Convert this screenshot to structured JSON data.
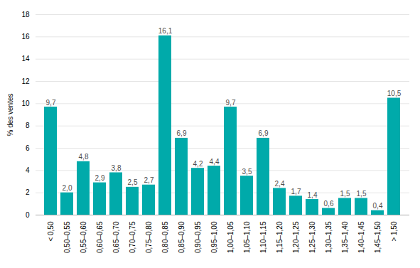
{
  "chart_data": {
    "type": "bar",
    "ylabel": "% des ventes",
    "categories": [
      "< 0,50",
      "0,50–0,55",
      "0,55–0,60",
      "0,60–0,65",
      "0,65–0,70",
      "0,70–0,75",
      "0,75–0,80",
      "0,80–0,85",
      "0,85–0,90",
      "0,90–0,95",
      "0,95–1,00",
      "1,00–1,05",
      "1,05–1,10",
      "1,10–1,15",
      "1,15–1,20",
      "1,20–1,25",
      "1,25–1,30",
      "1,30–1,35",
      "1,35–1,40",
      "1,40–1,45",
      "1,45–1,50",
      "> 1,50"
    ],
    "values": [
      9.7,
      2.0,
      4.8,
      2.9,
      3.8,
      2.5,
      2.7,
      16.1,
      6.9,
      4.2,
      4.4,
      9.7,
      3.5,
      6.9,
      2.4,
      1.7,
      1.4,
      0.6,
      1.5,
      1.5,
      0.4,
      10.5
    ],
    "value_labels": [
      "9,7",
      "2,0",
      "4,8",
      "2,9",
      "3,8",
      "2,5",
      "2,7",
      "16,1",
      "6,9",
      "4,2",
      "4,4",
      "9,7",
      "3,5",
      "6,9",
      "2,4",
      "1,7",
      "1,4",
      "0,6",
      "1,5",
      "1,5",
      "0,4",
      "10,5"
    ],
    "color": "#00AAAA",
    "ylim": [
      0,
      18
    ],
    "yticks": [
      0,
      2,
      4,
      6,
      8,
      10,
      12,
      14,
      16,
      18
    ],
    "grid": true,
    "data_labels": true
  }
}
